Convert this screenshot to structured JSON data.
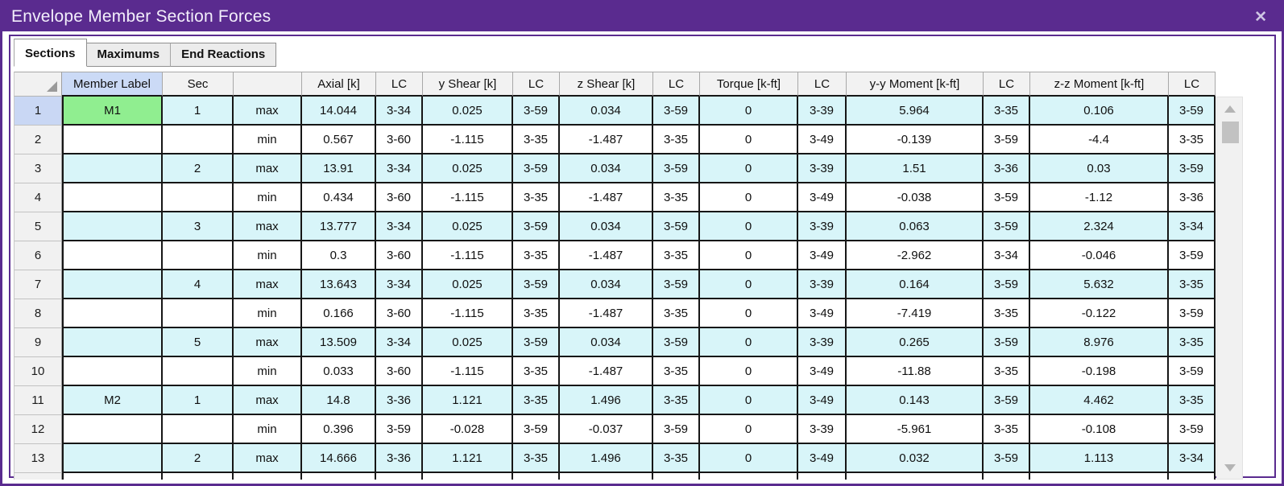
{
  "window": {
    "title": "Envelope Member Section Forces",
    "close_label": "✕"
  },
  "tabs": [
    {
      "label": "Sections",
      "active": true
    },
    {
      "label": "Maximums",
      "active": false
    },
    {
      "label": "End Reactions",
      "active": false
    }
  ],
  "table": {
    "columns": [
      "",
      "Member Label",
      "Sec",
      "",
      "Axial [k]",
      "LC",
      "y Shear [k]",
      "LC",
      "z Shear [k]",
      "LC",
      "Torque [k-ft]",
      "LC",
      "y-y Moment [k-ft]",
      "LC",
      "z-z Moment [k-ft]",
      "LC"
    ],
    "rows": [
      {
        "num": "1",
        "cells": [
          "M1",
          "1",
          "max",
          "14.044",
          "3-34",
          "0.025",
          "3-59",
          "0.034",
          "3-59",
          "0",
          "3-39",
          "5.964",
          "3-35",
          "0.106",
          "3-59"
        ]
      },
      {
        "num": "2",
        "cells": [
          "",
          "",
          "min",
          "0.567",
          "3-60",
          "-1.115",
          "3-35",
          "-1.487",
          "3-35",
          "0",
          "3-49",
          "-0.139",
          "3-59",
          "-4.4",
          "3-35"
        ]
      },
      {
        "num": "3",
        "cells": [
          "",
          "2",
          "max",
          "13.91",
          "3-34",
          "0.025",
          "3-59",
          "0.034",
          "3-59",
          "0",
          "3-39",
          "1.51",
          "3-36",
          "0.03",
          "3-59"
        ]
      },
      {
        "num": "4",
        "cells": [
          "",
          "",
          "min",
          "0.434",
          "3-60",
          "-1.115",
          "3-35",
          "-1.487",
          "3-35",
          "0",
          "3-49",
          "-0.038",
          "3-59",
          "-1.12",
          "3-36"
        ]
      },
      {
        "num": "5",
        "cells": [
          "",
          "3",
          "max",
          "13.777",
          "3-34",
          "0.025",
          "3-59",
          "0.034",
          "3-59",
          "0",
          "3-39",
          "0.063",
          "3-59",
          "2.324",
          "3-34"
        ]
      },
      {
        "num": "6",
        "cells": [
          "",
          "",
          "min",
          "0.3",
          "3-60",
          "-1.115",
          "3-35",
          "-1.487",
          "3-35",
          "0",
          "3-49",
          "-2.962",
          "3-34",
          "-0.046",
          "3-59"
        ]
      },
      {
        "num": "7",
        "cells": [
          "",
          "4",
          "max",
          "13.643",
          "3-34",
          "0.025",
          "3-59",
          "0.034",
          "3-59",
          "0",
          "3-39",
          "0.164",
          "3-59",
          "5.632",
          "3-35"
        ]
      },
      {
        "num": "8",
        "cells": [
          "",
          "",
          "min",
          "0.166",
          "3-60",
          "-1.115",
          "3-35",
          "-1.487",
          "3-35",
          "0",
          "3-49",
          "-7.419",
          "3-35",
          "-0.122",
          "3-59"
        ]
      },
      {
        "num": "9",
        "cells": [
          "",
          "5",
          "max",
          "13.509",
          "3-34",
          "0.025",
          "3-59",
          "0.034",
          "3-59",
          "0",
          "3-39",
          "0.265",
          "3-59",
          "8.976",
          "3-35"
        ]
      },
      {
        "num": "10",
        "cells": [
          "",
          "",
          "min",
          "0.033",
          "3-60",
          "-1.115",
          "3-35",
          "-1.487",
          "3-35",
          "0",
          "3-49",
          "-11.88",
          "3-35",
          "-0.198",
          "3-59"
        ]
      },
      {
        "num": "11",
        "cells": [
          "M2",
          "1",
          "max",
          "14.8",
          "3-36",
          "1.121",
          "3-35",
          "1.496",
          "3-35",
          "0",
          "3-49",
          "0.143",
          "3-59",
          "4.462",
          "3-35"
        ]
      },
      {
        "num": "12",
        "cells": [
          "",
          "",
          "min",
          "0.396",
          "3-59",
          "-0.028",
          "3-59",
          "-0.037",
          "3-59",
          "0",
          "3-39",
          "-5.961",
          "3-35",
          "-0.108",
          "3-59"
        ]
      },
      {
        "num": "13",
        "cells": [
          "",
          "2",
          "max",
          "14.666",
          "3-36",
          "1.121",
          "3-35",
          "1.496",
          "3-35",
          "0",
          "3-49",
          "0.032",
          "3-59",
          "1.113",
          "3-34"
        ]
      }
    ]
  },
  "selection": {
    "row": "1",
    "column": "Member Label",
    "value": "M1"
  },
  "colors": {
    "title_purple": "#5a2b8f",
    "shaded_row_cyan": "#d8f5f9",
    "selected_cell_green": "#90ee90",
    "selected_header_blue": "#cbdaf6",
    "selected_rownum_blue": "#c9d7f4"
  }
}
